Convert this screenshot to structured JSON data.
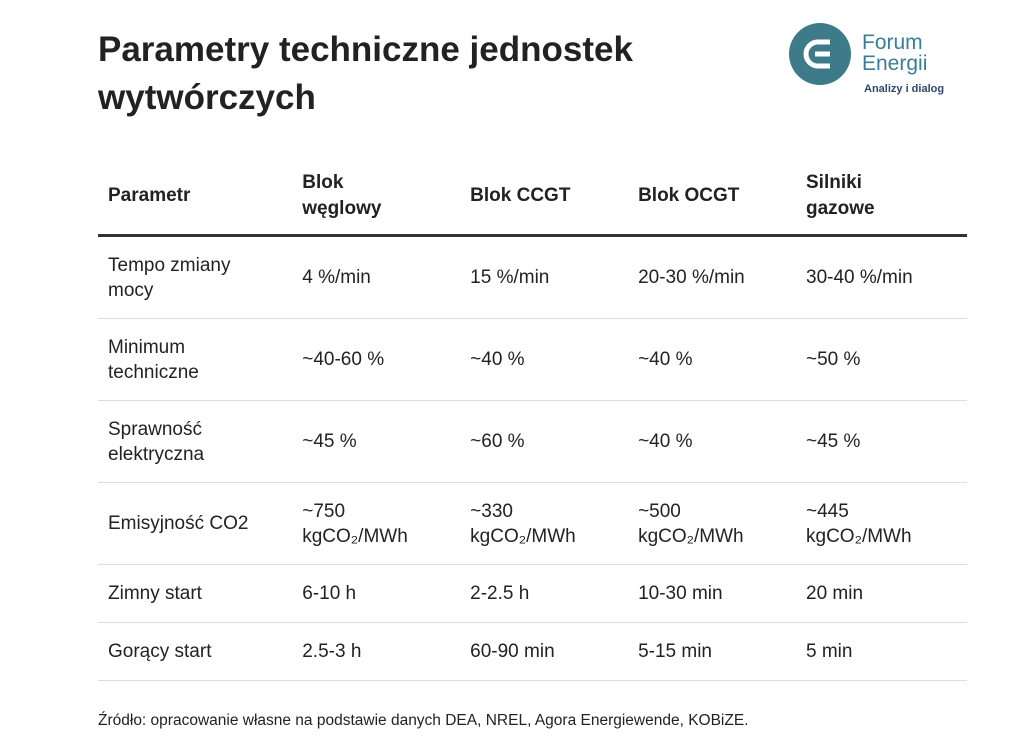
{
  "header": {
    "title": "Parametry techniczne jednostek wytwórczych",
    "logo": {
      "line1": "Forum",
      "line2": "Energii",
      "tagline": "Analizy i dialog"
    }
  },
  "table": {
    "columns": [
      "Parametr",
      "Blok węglowy",
      "Blok CCGT",
      "Blok OCGT",
      "Silniki gazowe"
    ],
    "rows": [
      [
        "Tempo zmiany mocy",
        "4 %/min",
        "15 %/min",
        "20-30 %/min",
        "30-40 %/min"
      ],
      [
        "Minimum techniczne",
        "~40-60 %",
        "~40 %",
        "~40 %",
        "~50 %"
      ],
      [
        "Sprawność elektryczna",
        "~45 %",
        "~60 %",
        "~40 %",
        "~45 %"
      ],
      [
        "Emisyjność CO2",
        "~750 kgCO₂/MWh",
        "~330 kgCO₂/MWh",
        "~500 kgCO₂/MWh",
        "~445 kgCO₂/MWh"
      ],
      [
        "Zimny start",
        "6-10 h",
        "2-2.5 h",
        "10-30 min",
        "20 min"
      ],
      [
        "Gorący start",
        "2.5-3 h",
        "60-90 min",
        "5-15 min",
        "5 min"
      ]
    ]
  },
  "source": "Źródło: opracowanie własne na podstawie danych DEA, NREL, Agora Energiewende, KOBiZE."
}
